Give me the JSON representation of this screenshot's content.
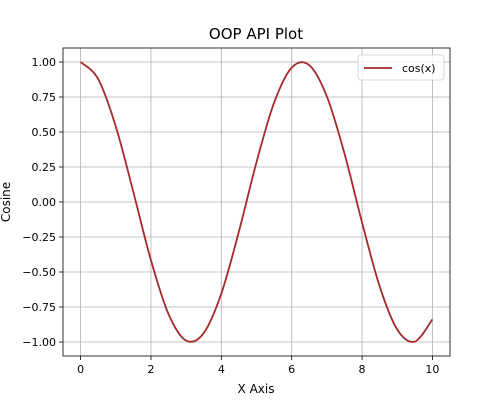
{
  "chart_data": {
    "type": "line",
    "title": "OOP API Plot",
    "xlabel": "X Axis",
    "ylabel": "Cosine",
    "xlim": [
      -0.5,
      10.5
    ],
    "ylim": [
      -1.1,
      1.1
    ],
    "xticks": [
      0,
      2,
      4,
      6,
      8,
      10
    ],
    "xtick_labels": [
      "0",
      "2",
      "4",
      "6",
      "8",
      "10"
    ],
    "yticks": [
      1.0,
      0.75,
      0.5,
      0.25,
      0.0,
      -0.25,
      -0.5,
      -0.75,
      -1.0
    ],
    "ytick_labels": [
      "1.00",
      "0.75",
      "0.50",
      "0.25",
      "0.00",
      "−0.25",
      "−0.50",
      "−0.75",
      "−1.00"
    ],
    "grid": true,
    "legend": {
      "position": "upper-right"
    },
    "series": [
      {
        "name": "cos(x)",
        "color": "#a52a2a",
        "x": [
          0,
          0.5,
          1,
          1.5,
          2,
          2.5,
          3,
          3.5,
          4,
          4.5,
          5,
          5.5,
          6,
          6.5,
          7,
          7.5,
          8,
          8.5,
          9,
          9.5,
          10
        ],
        "y": [
          1.0,
          0.878,
          0.54,
          0.071,
          -0.416,
          -0.801,
          -0.99,
          -0.936,
          -0.654,
          -0.211,
          0.284,
          0.709,
          0.96,
          0.977,
          0.754,
          0.347,
          -0.146,
          -0.602,
          -0.911,
          -0.997,
          -0.839
        ]
      }
    ]
  }
}
